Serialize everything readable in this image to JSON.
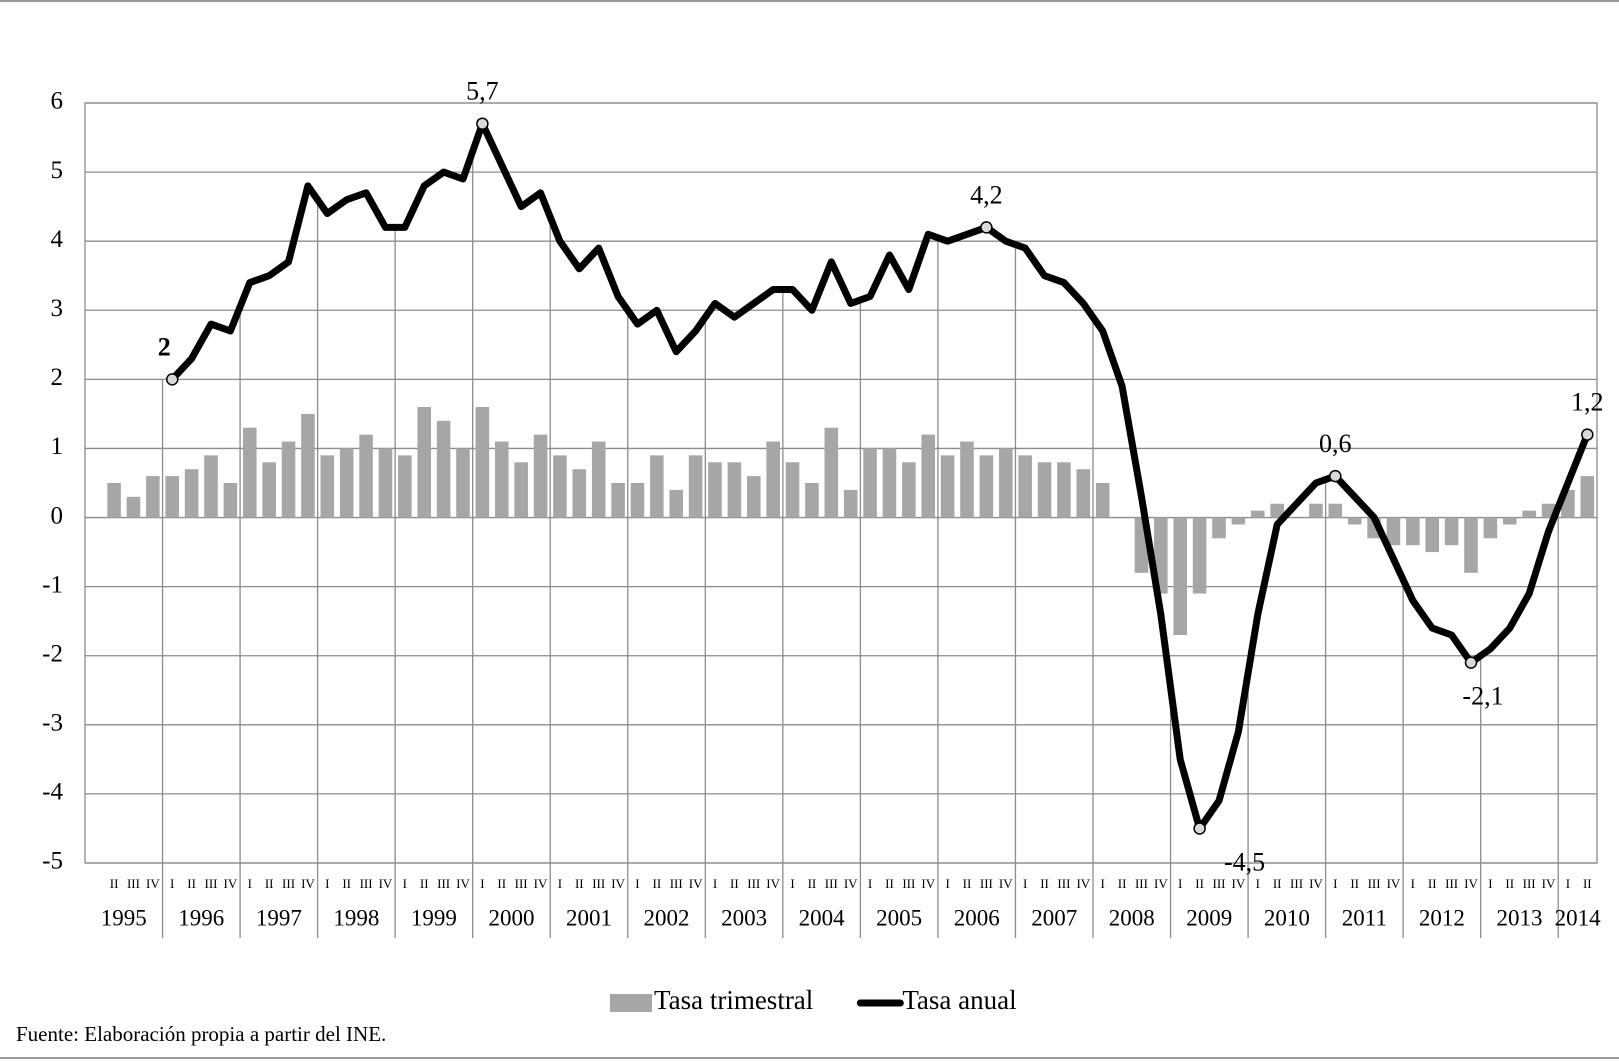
{
  "chart_data": {
    "type": "bar-line",
    "categories": [
      null,
      "II",
      "III",
      "IV",
      "I",
      "II",
      "III",
      "IV",
      "I",
      "II",
      "III",
      "IV",
      "I",
      "II",
      "III",
      "IV",
      "I",
      "II",
      "III",
      "IV",
      "I",
      "II",
      "III",
      "IV",
      "I",
      "II",
      "III",
      "IV",
      "I",
      "II",
      "III",
      "IV",
      "I",
      "II",
      "III",
      "IV",
      "I",
      "II",
      "III",
      "IV",
      "I",
      "II",
      "III",
      "IV",
      "I",
      "II",
      "III",
      "IV",
      "I",
      "II",
      "III",
      "IV",
      "I",
      "II",
      "III",
      "IV",
      "I",
      "II",
      "III",
      "IV",
      "I",
      "II",
      "III",
      "IV",
      "I",
      "II",
      "III",
      "IV",
      "I",
      "II",
      "III",
      "IV",
      "I",
      "II",
      "III",
      "IV",
      "I",
      "II"
    ],
    "years": [
      "1995",
      "1996",
      "1997",
      "1998",
      "1999",
      "2000",
      "2001",
      "2002",
      "2003",
      "2004",
      "2005",
      "2006",
      "2007",
      "2008",
      "2009",
      "2010",
      "2011",
      "2012",
      "2013",
      "2014"
    ],
    "series": [
      {
        "name": "Tasa trimestral",
        "kind": "bar",
        "color": "#a6a6a6",
        "values": [
          null,
          0.5,
          0.3,
          0.6,
          0.6,
          0.7,
          0.9,
          0.5,
          1.3,
          0.8,
          1.1,
          1.5,
          0.9,
          1.0,
          1.2,
          1.0,
          0.9,
          1.6,
          1.4,
          1.0,
          1.6,
          1.1,
          0.8,
          1.2,
          0.9,
          0.7,
          1.1,
          0.5,
          0.5,
          0.9,
          0.4,
          0.9,
          0.8,
          0.8,
          0.6,
          1.1,
          0.8,
          0.5,
          1.3,
          0.4,
          1.0,
          1.0,
          0.8,
          1.2,
          0.9,
          1.1,
          0.9,
          1.0,
          0.9,
          0.8,
          0.8,
          0.7,
          0.5,
          0.0,
          -0.8,
          -1.1,
          -1.7,
          -1.1,
          -0.3,
          -0.1,
          0.1,
          0.2,
          0.0,
          0.2,
          0.2,
          -0.1,
          -0.3,
          -0.4,
          -0.4,
          -0.5,
          -0.4,
          -0.8,
          -0.3,
          -0.1,
          0.1,
          0.2,
          0.4,
          0.6
        ]
      },
      {
        "name": "Tasa anual",
        "kind": "line",
        "color": "#000000",
        "values": [
          null,
          null,
          null,
          null,
          2.0,
          2.3,
          2.8,
          2.7,
          3.4,
          3.5,
          3.7,
          4.8,
          4.4,
          4.6,
          4.7,
          4.2,
          4.2,
          4.8,
          5.0,
          4.9,
          5.7,
          5.1,
          4.5,
          4.7,
          4.0,
          3.6,
          3.9,
          3.2,
          2.8,
          3.0,
          2.4,
          2.7,
          3.1,
          2.9,
          3.1,
          3.3,
          3.3,
          3.0,
          3.7,
          3.1,
          3.2,
          3.8,
          3.3,
          4.1,
          4.0,
          4.1,
          4.2,
          4.0,
          3.9,
          3.5,
          3.4,
          3.1,
          2.7,
          1.9,
          0.3,
          -1.4,
          -3.5,
          -4.5,
          -4.1,
          -3.1,
          -1.4,
          -0.1,
          0.2,
          0.5,
          0.6,
          0.3,
          0.0,
          -0.6,
          -1.2,
          -1.6,
          -1.7,
          -2.1,
          -1.9,
          -1.6,
          -1.1,
          -0.2,
          0.5,
          1.2
        ],
        "value_labels": [
          null,
          null,
          null,
          null,
          "2",
          null,
          null,
          null,
          null,
          null,
          null,
          null,
          null,
          null,
          null,
          null,
          null,
          null,
          null,
          null,
          "5,7",
          null,
          null,
          null,
          null,
          null,
          null,
          null,
          null,
          null,
          null,
          null,
          null,
          null,
          null,
          null,
          null,
          null,
          null,
          null,
          null,
          null,
          null,
          null,
          null,
          null,
          "4,2",
          null,
          null,
          null,
          null,
          null,
          null,
          null,
          null,
          null,
          null,
          "-4,5",
          null,
          null,
          null,
          null,
          null,
          null,
          "0,6",
          null,
          null,
          null,
          null,
          null,
          null,
          "-2,1",
          null,
          null,
          null,
          null,
          null,
          "1,2"
        ]
      }
    ],
    "ylim": [
      -5,
      6
    ],
    "yticks": [
      -5,
      -4,
      -3,
      -2,
      -1,
      0,
      1,
      2,
      3,
      4,
      5,
      6
    ],
    "grid": true,
    "legend": "bottom",
    "source": "Fuente:  Elaboración propia a partir del INE."
  }
}
